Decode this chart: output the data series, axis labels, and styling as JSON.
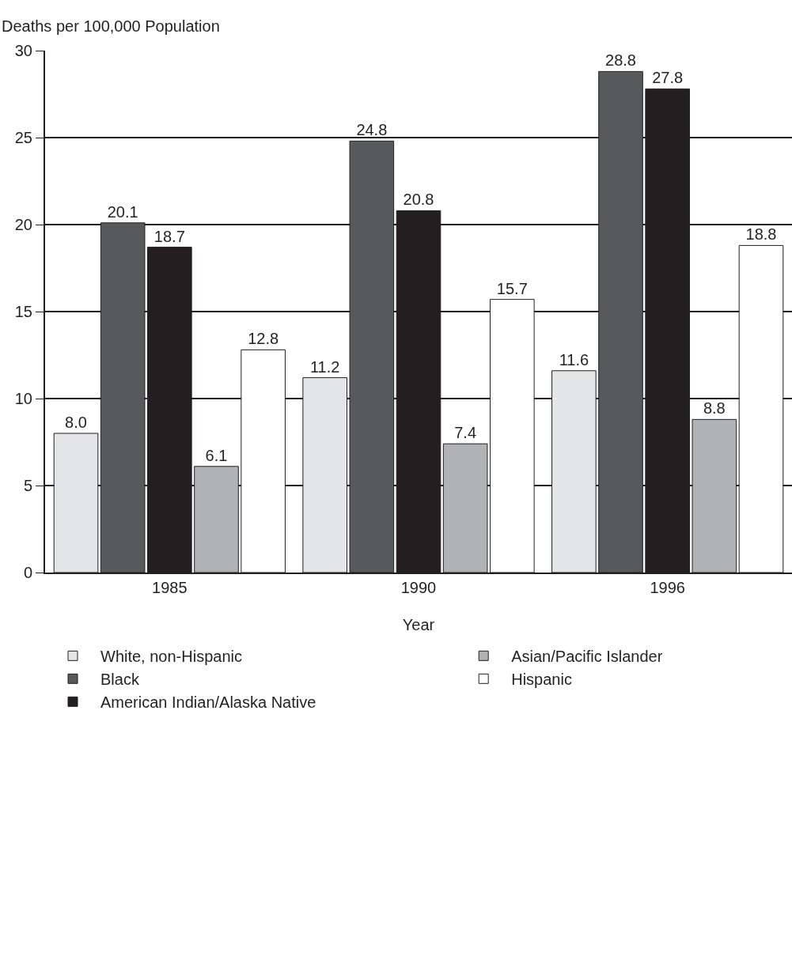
{
  "chart_data": {
    "type": "bar",
    "ylabel": "Deaths per 100,000 Population",
    "xlabel": "Year",
    "categories": [
      "1985",
      "1990",
      "1996"
    ],
    "series": [
      {
        "name": "White, non-Hispanic",
        "color": "#e4e5e7",
        "values": [
          8.0,
          11.2,
          11.6
        ],
        "value_labels": [
          "8.0",
          "11.2",
          "11.6"
        ]
      },
      {
        "name": "Black",
        "color": "#58595b",
        "values": [
          20.1,
          24.8,
          28.8
        ],
        "value_labels": [
          "20.1",
          "24.8",
          "28.8"
        ]
      },
      {
        "name": "American Indian/Alaska Native",
        "color": "#231f20",
        "values": [
          18.7,
          20.8,
          27.8
        ],
        "value_labels": [
          "18.7",
          "20.8",
          "27.8"
        ]
      },
      {
        "name": "Asian/Pacific Islander",
        "color": "#b1b2b4",
        "values": [
          6.1,
          7.4,
          8.8
        ],
        "value_labels": [
          "6.1",
          "7.4",
          "8.8"
        ]
      },
      {
        "name": "Hispanic",
        "color": "#ffffff",
        "values": [
          12.8,
          15.7,
          18.8
        ],
        "value_labels": [
          "12.8",
          "15.7",
          "18.8"
        ]
      }
    ],
    "ylim": [
      0,
      30
    ],
    "yticks": [
      0,
      5,
      10,
      15,
      20,
      25,
      30
    ],
    "grid": "y",
    "legend": "bottom"
  }
}
